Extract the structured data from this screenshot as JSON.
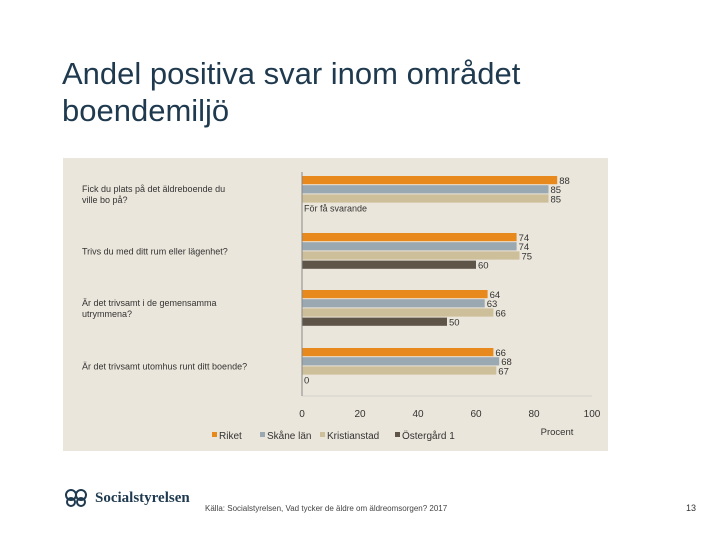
{
  "title": "Andel positiva svar inom området boendemiljö",
  "chart_data": {
    "type": "bar",
    "orientation": "horizontal",
    "categories": [
      "Fick du plats på det äldreboende du ville bo på?",
      "Trivs du med ditt rum eller lägenhet?",
      "Är det trivsamt i de gemensamma utrymmena?",
      "Är det trivsamt utomhus runt ditt boende?"
    ],
    "series": [
      {
        "name": "Riket",
        "color": "#e8891e",
        "values": [
          88,
          74,
          64,
          66
        ]
      },
      {
        "name": "Skåne län",
        "color": "#9aa8b2",
        "values": [
          85,
          74,
          63,
          68
        ]
      },
      {
        "name": "Kristianstad",
        "color": "#cdbf9a",
        "values": [
          85,
          75,
          66,
          67
        ]
      },
      {
        "name": "Östergård 1",
        "color": "#5f5448",
        "values": [
          null,
          60,
          50,
          0
        ]
      }
    ],
    "annotations": [
      "För få svarande"
    ],
    "xticks": [
      0,
      20,
      40,
      60,
      80,
      100
    ],
    "xlim": [
      0,
      100
    ],
    "xlabel": "Procent",
    "legend_position": "bottom"
  },
  "footer": {
    "logo_text": "Socialstyrelsen",
    "source": "Källa: Socialstyrelsen, Vad tycker de äldre om äldreomsorgen? 2017",
    "page_number": "13"
  }
}
